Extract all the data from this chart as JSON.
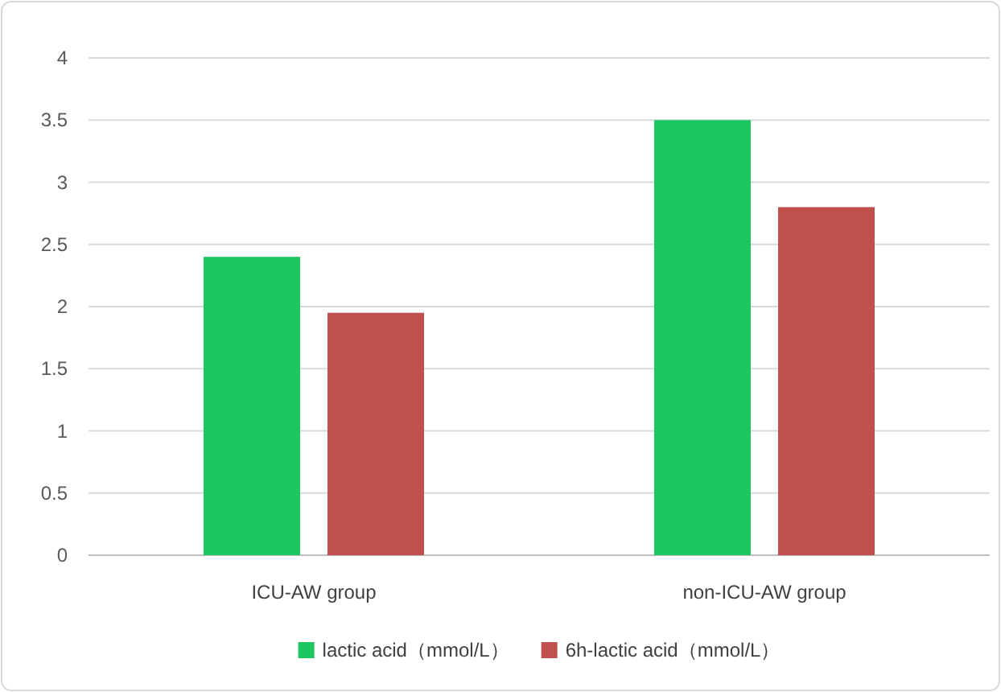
{
  "chart_data": {
    "type": "bar",
    "categories": [
      "ICU-AW group",
      "non-ICU-AW group"
    ],
    "series": [
      {
        "name": "lactic acid（mmol/L）",
        "color": "#1cc760",
        "values": [
          2.4,
          3.5
        ]
      },
      {
        "name": "6h-lactic acid（mmol/L）",
        "color": "#c0504d",
        "values": [
          1.95,
          2.8
        ]
      }
    ],
    "ylim": [
      0,
      4
    ],
    "yticks": [
      0,
      0.5,
      1,
      1.5,
      2,
      2.5,
      3,
      3.5,
      4
    ],
    "grid": "y",
    "legend": "bottom"
  }
}
